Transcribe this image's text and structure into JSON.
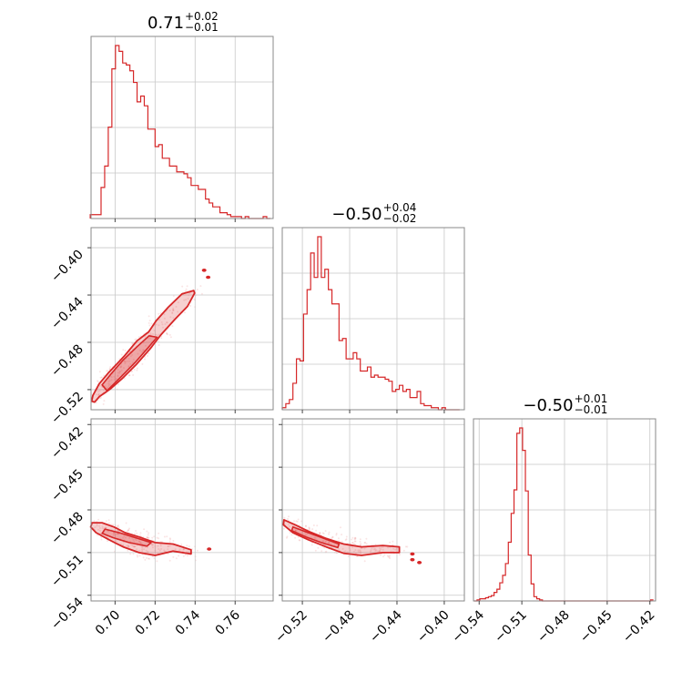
{
  "chart_data": {
    "type": "corner",
    "color": "#d62728",
    "grid": true,
    "parameters": [
      {
        "range": [
          0.688,
          0.779
        ],
        "ticks": [
          0.7,
          0.72,
          0.74,
          0.76
        ],
        "tick_labels": [
          "0.70",
          "0.72",
          "0.74",
          "0.76"
        ]
      },
      {
        "range": [
          -0.537,
          -0.383
        ],
        "ticks": [
          -0.52,
          -0.48,
          -0.44,
          -0.4
        ],
        "tick_labels": [
          "−0.52",
          "−0.48",
          "−0.44",
          "−0.40"
        ]
      },
      {
        "range": [
          -0.544,
          -0.416
        ],
        "ticks": [
          -0.54,
          -0.51,
          -0.48,
          -0.45,
          -0.42
        ],
        "tick_labels": [
          "−0.54",
          "−0.51",
          "−0.48",
          "−0.45",
          "−0.42"
        ]
      }
    ],
    "titles": [
      {
        "main": "0.71",
        "plus": "+0.02",
        "minus": "−0.01"
      },
      {
        "main": "−0.50",
        "plus": "+0.04",
        "minus": "−0.02"
      },
      {
        "main": "−0.50",
        "plus": "+0.01",
        "minus": "−0.01"
      }
    ],
    "histograms": [
      {
        "param": 0,
        "bins": [
          0.6885,
          0.6903,
          0.6921,
          0.6939,
          0.6957,
          0.6975,
          0.6993,
          0.7011,
          0.7029,
          0.7047,
          0.7065,
          0.7083,
          0.7101,
          0.7119,
          0.7137,
          0.7155,
          0.7173,
          0.7191,
          0.7209,
          0.7227,
          0.7245,
          0.7263,
          0.7281,
          0.7299,
          0.7317,
          0.7335,
          0.7353,
          0.7371,
          0.7389,
          0.7407,
          0.7425,
          0.7443,
          0.7461,
          0.7479,
          0.7497,
          0.7515,
          0.7533,
          0.7551,
          0.7569,
          0.7587,
          0.7605,
          0.7623,
          0.7641,
          0.7659,
          0.7677,
          0.7695,
          0.7713,
          0.7731,
          0.7749,
          0.7767
        ],
        "counts": [
          2,
          2,
          2,
          16,
          27,
          47,
          77,
          89,
          86,
          80,
          79,
          76,
          70,
          60,
          63,
          58,
          46,
          46,
          37,
          38,
          31,
          31,
          27,
          27,
          24,
          24,
          23,
          21,
          17,
          17,
          15,
          15,
          10,
          8,
          6,
          6,
          3,
          3,
          2,
          1,
          1,
          1,
          0,
          1,
          0,
          0,
          0,
          0,
          1,
          0
        ]
      },
      {
        "param": 1,
        "bins": [
          -0.5355,
          -0.5325,
          -0.5295,
          -0.5265,
          -0.5235,
          -0.5205,
          -0.5175,
          -0.5145,
          -0.5115,
          -0.5085,
          -0.5055,
          -0.5025,
          -0.4995,
          -0.4965,
          -0.4935,
          -0.4905,
          -0.4875,
          -0.4845,
          -0.4815,
          -0.4785,
          -0.4755,
          -0.4725,
          -0.4695,
          -0.4665,
          -0.4635,
          -0.4605,
          -0.4575,
          -0.4545,
          -0.4515,
          -0.4485,
          -0.4455,
          -0.4425,
          -0.4395,
          -0.4365,
          -0.4335,
          -0.4305,
          -0.4275,
          -0.4245,
          -0.4215,
          -0.4185,
          -0.4155,
          -0.4125,
          -0.4095,
          -0.4065,
          -0.4035,
          -0.4005,
          -0.3975,
          -0.3945,
          -0.3915,
          -0.3885
        ],
        "counts": [
          1,
          3,
          5,
          13,
          25,
          24,
          47,
          59,
          77,
          65,
          85,
          65,
          69,
          59,
          52,
          52,
          34,
          35,
          25,
          25,
          28,
          25,
          19,
          19,
          21,
          16,
          17,
          16,
          16,
          15,
          14,
          9,
          10,
          12,
          9,
          10,
          6,
          6,
          9,
          3,
          2,
          2,
          1,
          1,
          0,
          1,
          0,
          0,
          0,
          0
        ]
      },
      {
        "param": 2,
        "bins": [
          -0.5425,
          -0.5405,
          -0.5385,
          -0.5365,
          -0.5345,
          -0.5325,
          -0.5305,
          -0.5285,
          -0.5265,
          -0.5245,
          -0.5225,
          -0.5205,
          -0.5185,
          -0.5165,
          -0.5145,
          -0.5125,
          -0.5105,
          -0.5085,
          -0.5065,
          -0.5045,
          -0.5025,
          -0.5005,
          -0.4985,
          -0.4965,
          -0.4945,
          -0.4925,
          -0.4905,
          -0.4885,
          -0.4865,
          -0.4845,
          -0.4825,
          -0.4805,
          -0.4785,
          -0.4765,
          -0.4745,
          -0.4725,
          -0.4705,
          -0.4685,
          -0.4665,
          -0.4645,
          -0.4625,
          -0.4605,
          -0.4585,
          -0.4565,
          -0.4545,
          -0.4525,
          -0.4505,
          -0.4485,
          -0.4465,
          -0.4445,
          -0.4425,
          -0.4405,
          -0.4385,
          -0.4365,
          -0.4345,
          -0.4325,
          -0.4305,
          -0.4285,
          -0.4265,
          -0.4245,
          -0.4225,
          -0.4205,
          -0.4185
        ],
        "counts": [
          0,
          1,
          2,
          2,
          3,
          4,
          5,
          8,
          11,
          17,
          24,
          35,
          55,
          82,
          104,
          157,
          162,
          141,
          103,
          43,
          16,
          4,
          2,
          1,
          0,
          0,
          0,
          0,
          0,
          0,
          0,
          0,
          0,
          0,
          0,
          0,
          0,
          0,
          0,
          0,
          0,
          0,
          0,
          0,
          0,
          0,
          0,
          0,
          0,
          0,
          0,
          0,
          0,
          0,
          0,
          0,
          0,
          0,
          0,
          0,
          0,
          0,
          1
        ]
      }
    ],
    "contours": [
      {
        "x_param": 0,
        "y_param": 1,
        "outer": [
          [
            0.6898,
            -0.5305
          ],
          [
            0.6922,
            -0.5258
          ],
          [
            0.6975,
            -0.5196
          ],
          [
            0.7038,
            -0.5103
          ],
          [
            0.7105,
            -0.4989
          ],
          [
            0.7175,
            -0.4856
          ],
          [
            0.723,
            -0.4735
          ],
          [
            0.73,
            -0.4604
          ],
          [
            0.7362,
            -0.4496
          ],
          [
            0.7398,
            -0.4383
          ],
          [
            0.7393,
            -0.4362
          ],
          [
            0.7335,
            -0.439
          ],
          [
            0.7266,
            -0.4503
          ],
          [
            0.7206,
            -0.4616
          ],
          [
            0.7168,
            -0.4712
          ],
          [
            0.711,
            -0.4787
          ],
          [
            0.7045,
            -0.4918
          ],
          [
            0.6965,
            -0.5061
          ],
          [
            0.6921,
            -0.515
          ],
          [
            0.6889,
            -0.5249
          ],
          [
            0.6883,
            -0.5298
          ]
        ],
        "inner": [
          [
            0.696,
            -0.5209
          ],
          [
            0.703,
            -0.5091
          ],
          [
            0.71,
            -0.497
          ],
          [
            0.716,
            -0.4856
          ],
          [
            0.721,
            -0.4757
          ],
          [
            0.717,
            -0.4745
          ],
          [
            0.711,
            -0.4837
          ],
          [
            0.704,
            -0.495
          ],
          [
            0.698,
            -0.5067
          ],
          [
            0.6935,
            -0.516
          ]
        ],
        "spots": [
          [
            0.7445,
            -0.419
          ],
          [
            0.7465,
            -0.425
          ]
        ]
      },
      {
        "x_param": 0,
        "y_param": 2,
        "outer": [
          [
            0.6885,
            -0.489
          ],
          [
            0.6935,
            -0.489
          ],
          [
            0.6995,
            -0.492
          ],
          [
            0.705,
            -0.496
          ],
          [
            0.712,
            -0.499
          ],
          [
            0.72,
            -0.503
          ],
          [
            0.729,
            -0.504
          ],
          [
            0.738,
            -0.508
          ],
          [
            0.738,
            -0.511
          ],
          [
            0.729,
            -0.509
          ],
          [
            0.72,
            -0.512
          ],
          [
            0.712,
            -0.51
          ],
          [
            0.704,
            -0.506
          ],
          [
            0.697,
            -0.501
          ],
          [
            0.6905,
            -0.496
          ],
          [
            0.6878,
            -0.492
          ]
        ],
        "inner": [
          [
            0.695,
            -0.4935
          ],
          [
            0.702,
            -0.496
          ],
          [
            0.709,
            -0.499
          ],
          [
            0.718,
            -0.503
          ],
          [
            0.716,
            -0.5055
          ],
          [
            0.707,
            -0.503
          ],
          [
            0.699,
            -0.4995
          ],
          [
            0.6935,
            -0.4965
          ]
        ],
        "spots": [
          [
            0.747,
            -0.5075
          ]
        ]
      },
      {
        "x_param": 1,
        "y_param": 2,
        "outer": [
          [
            -0.5355,
            -0.487
          ],
          [
            -0.526,
            -0.4905
          ],
          [
            -0.515,
            -0.495
          ],
          [
            -0.5,
            -0.5
          ],
          [
            -0.485,
            -0.504
          ],
          [
            -0.47,
            -0.506
          ],
          [
            -0.452,
            -0.505
          ],
          [
            -0.438,
            -0.506
          ],
          [
            -0.438,
            -0.51
          ],
          [
            -0.452,
            -0.51
          ],
          [
            -0.47,
            -0.512
          ],
          [
            -0.485,
            -0.5105
          ],
          [
            -0.5,
            -0.506
          ],
          [
            -0.515,
            -0.501
          ],
          [
            -0.528,
            -0.496
          ],
          [
            -0.536,
            -0.4905
          ]
        ],
        "inner": [
          [
            -0.528,
            -0.492
          ],
          [
            -0.515,
            -0.496
          ],
          [
            -0.502,
            -0.5
          ],
          [
            -0.489,
            -0.504
          ],
          [
            -0.49,
            -0.5065
          ],
          [
            -0.504,
            -0.503
          ],
          [
            -0.517,
            -0.499
          ],
          [
            -0.529,
            -0.4945
          ]
        ],
        "spots": [
          [
            -0.427,
            -0.511
          ],
          [
            -0.427,
            -0.515
          ],
          [
            -0.421,
            -0.517
          ]
        ]
      }
    ]
  }
}
